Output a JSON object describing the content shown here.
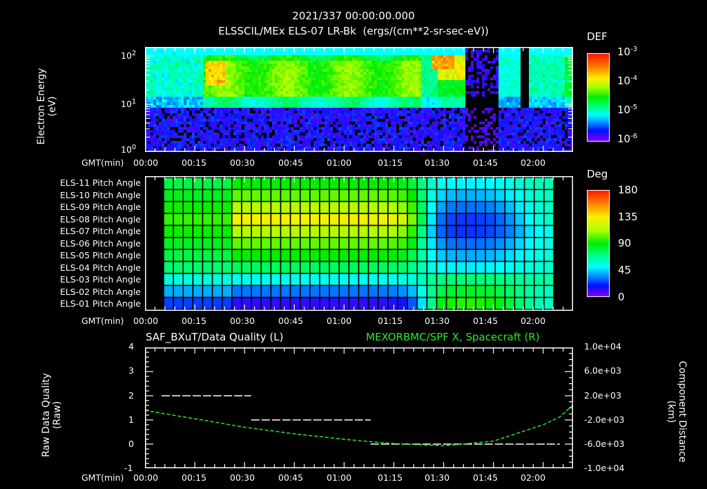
{
  "header": {
    "time": "2021/337 00:00:00.000",
    "subtitle": "ELSSCIL/MEx ELS-07 LR-Bk  (ergs/(cm**2-sr-sec-eV))"
  },
  "colors": {
    "background": "#000000",
    "axes": "#ffffff",
    "right_series": "#22ee22"
  },
  "time_axis": {
    "label": "GMT(min)",
    "ticks": [
      "00:00",
      "00:15",
      "00:30",
      "00:45",
      "01:00",
      "01:15",
      "01:30",
      "01:45",
      "02:00"
    ]
  },
  "panel1": {
    "ylabel": "Electron Energy",
    "yunit": "(eV)",
    "yticks": [
      {
        "base": "10",
        "exp": "2"
      },
      {
        "base": "10",
        "exp": "1"
      },
      {
        "base": "10",
        "exp": "0"
      }
    ],
    "colorbar": {
      "title": "DEF",
      "ticks": [
        {
          "base": "10",
          "exp": "-3"
        },
        {
          "base": "10",
          "exp": "-4"
        },
        {
          "base": "10",
          "exp": "-5"
        },
        {
          "base": "10",
          "exp": "-6"
        }
      ]
    }
  },
  "panel2": {
    "rows": [
      "ELS-11 Pitch Angle",
      "ELS-10 Pitch Angle",
      "ELS-09 Pitch Angle",
      "ELS-08 Pitch Angle",
      "ELS-07 Pitch Angle",
      "ELS-06 Pitch Angle",
      "ELS-05 Pitch Angle",
      "ELS-04 Pitch Angle",
      "ELS-03 Pitch Angle",
      "ELS-02 Pitch Angle",
      "ELS-01 Pitch Angle"
    ],
    "colorbar": {
      "title": "Deg",
      "ticks": [
        "180",
        "135",
        "90",
        "45",
        "0"
      ]
    }
  },
  "panel3": {
    "left_title": "SAF_BXuT/Data Quality (L)",
    "right_title": "MEXORBMC/SPF X, Spacecraft (R)",
    "ylabel_left": "Raw Data Quality",
    "yunit_left": "(Raw)",
    "yticks_left": [
      "4",
      "3",
      "2",
      "1",
      "0",
      "-1"
    ],
    "ylabel_right": "Component Distance",
    "yunit_right": "(km)",
    "yticks_right": [
      "1.0e+04",
      "6.0e+03",
      "2.0e+03",
      "-2.0e+03",
      "-6.0e+03",
      "-1.0e+04"
    ]
  },
  "chart_data": [
    {
      "type": "heatmap",
      "title": "ELSSCIL/MEx ELS-07 LR-Bk (ergs/(cm**2-sr-sec-eV))",
      "xlabel": "GMT(min)",
      "ylabel": "Electron Energy (eV)",
      "yscale": "log",
      "ylim": [
        1,
        150
      ],
      "xlim": [
        "00:00",
        "02:09"
      ],
      "colorbar": {
        "label": "DEF",
        "scale": "log",
        "range": [
          1e-06,
          0.001
        ]
      },
      "notes": "Strong flux (green-yellow, ~1e-4) at 15-60 eV from 00:17 to 01:23; intense peak near 00:20 (~30 eV) and 01:27-01:33 (~60-100 eV); near-empty flux 01:35-01:55; weak flux below ~7 eV throughout"
    },
    {
      "type": "heatmap",
      "title": "ELS Pitch Angle",
      "xlabel": "GMT(min)",
      "categories": [
        "ELS-11",
        "ELS-10",
        "ELS-09",
        "ELS-08",
        "ELS-07",
        "ELS-06",
        "ELS-05",
        "ELS-04",
        "ELS-03",
        "ELS-02",
        "ELS-01"
      ],
      "colorbar": {
        "label": "Deg",
        "range": [
          0,
          180
        ]
      },
      "xlim": [
        "00:05",
        "02:05"
      ],
      "notes": "00:05-01:20: ELS-08 ~130 deg (yellow), grading to ELS-01 ~30 deg (blue). 01:25-01:55: inverted pattern, ELS-08/07 ~15 deg (deep blue), ELS-01 ~110 deg."
    },
    {
      "type": "line",
      "title": "SAF_BXuT/Data Quality (L) / MEXORBMC/SPF X, Spacecraft (R)",
      "xlabel": "GMT(min)",
      "x": [
        "00:00",
        "00:05",
        "00:15",
        "00:30",
        "00:45",
        "01:00",
        "01:08",
        "01:15",
        "01:30",
        "01:45",
        "02:00",
        "02:05",
        "02:09"
      ],
      "series": [
        {
          "name": "Raw Data Quality (L)",
          "axis": "left",
          "segments": [
            {
              "x": [
                "00:05",
                "00:32"
              ],
              "y": 2
            },
            {
              "x": [
                "00:32",
                "01:08"
              ],
              "y": 1
            },
            {
              "x": [
                "01:08",
                "02:05"
              ],
              "y": 0
            }
          ]
        },
        {
          "name": "SPF X Spacecraft (R, km)",
          "axis": "right",
          "values": [
            -400,
            -900,
            -1800,
            -3200,
            -4300,
            -5200,
            -5600,
            -5900,
            -6300,
            -5500,
            -2800,
            -1500,
            500
          ]
        }
      ],
      "ylim_left": [
        -1,
        4
      ],
      "ylim_right": [
        -10000,
        10000
      ]
    }
  ]
}
